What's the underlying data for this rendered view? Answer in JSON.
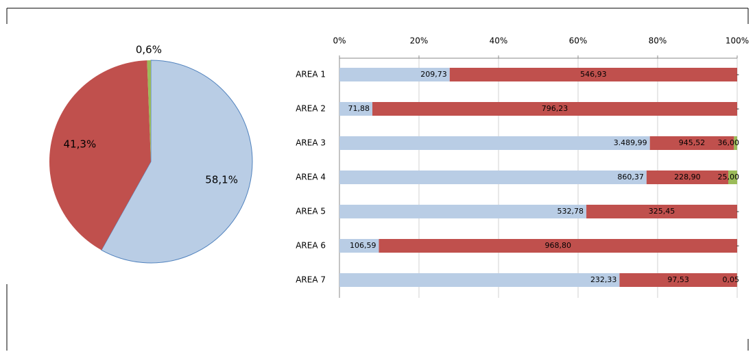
{
  "chart_data": [
    {
      "type": "pie",
      "values": [
        58.1,
        41.3,
        0.6
      ],
      "value_labels": [
        "58,1%",
        "41,3%",
        "0,6%"
      ],
      "colors": [
        "#b9cde5",
        "#c0504d",
        "#9bbb59"
      ]
    },
    {
      "type": "stacked-bar-100",
      "categories": [
        "AREA 1",
        "AREA 2",
        "AREA 3",
        "AREA 4",
        "AREA 5",
        "AREA 6",
        "AREA 7"
      ],
      "series": [
        {
          "color": "#b9cde5",
          "values": [
            209.73,
            71.88,
            3489.99,
            860.37,
            532.78,
            106.59,
            232.33
          ],
          "value_labels": [
            "209,73",
            "71,88",
            "3.489,99",
            "860,37",
            "532,78",
            "106,59",
            "232,33"
          ]
        },
        {
          "color": "#c0504d",
          "values": [
            546.93,
            796.23,
            945.52,
            228.9,
            325.45,
            968.8,
            97.53
          ],
          "value_labels": [
            "546,93",
            "796,23",
            "945,52",
            "228,90",
            "325,45",
            "968,80",
            "97,53"
          ]
        },
        {
          "color": "#9bbb59",
          "values": [
            0,
            0,
            36.0,
            25.0,
            0,
            0,
            0.05
          ],
          "value_labels": [
            "-",
            "-",
            "36,00",
            "25,00",
            "-",
            "-",
            "0,05"
          ]
        }
      ],
      "xlim": [
        0,
        100
      ],
      "xticks": [
        {
          "value": 0,
          "label": "0%"
        },
        {
          "value": 20,
          "label": "20%"
        },
        {
          "value": 40,
          "label": "40%"
        },
        {
          "value": 60,
          "label": "60%"
        },
        {
          "value": 80,
          "label": "80%"
        },
        {
          "value": 100,
          "label": "100%"
        }
      ],
      "grid": true
    }
  ]
}
